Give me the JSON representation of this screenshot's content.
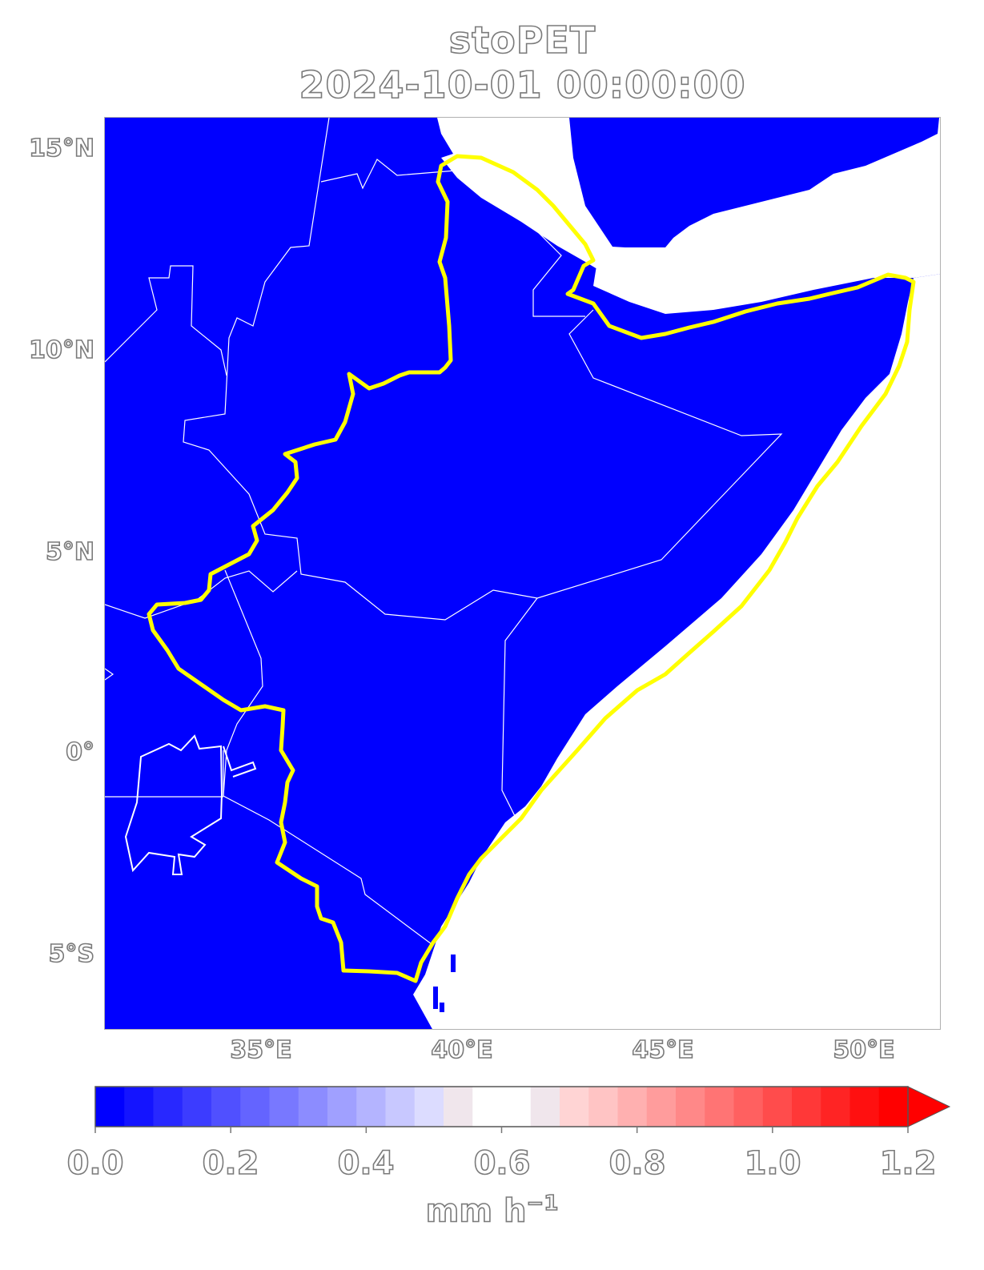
{
  "title": {
    "variable": "stoPET",
    "datetime": "2024-10-01 00:00:00"
  },
  "map": {
    "fill_color": "#0000ff",
    "boundary_color": "#ffffff",
    "highlight_boundary_color": "#ffff00",
    "lat_labels": [
      "15°N",
      "10°N",
      "5°N",
      "0°",
      "5°S"
    ],
    "lon_labels": [
      "35°E",
      "40°E",
      "45°E",
      "50°E"
    ]
  },
  "colorbar": {
    "tick_labels": [
      "0.0",
      "0.2",
      "0.4",
      "0.6",
      "0.8",
      "1.0",
      "1.2"
    ],
    "units_base": "mm h",
    "units_exp": "−1",
    "colors": [
      "#0000ff",
      "#1414ff",
      "#2828ff",
      "#3c3cff",
      "#5050ff",
      "#6464ff",
      "#7878ff",
      "#8c8cff",
      "#a0a0ff",
      "#b4b4ff",
      "#c8c8ff",
      "#dcdcff",
      "#f0e6ec",
      "#ffffff",
      "#ffffff",
      "#f0e6ec",
      "#ffd4d4",
      "#ffc4c4",
      "#ffb0b0",
      "#ff9c9c",
      "#ff8888",
      "#ff7474",
      "#ff6060",
      "#ff4c4c",
      "#ff3838",
      "#ff2424",
      "#ff1010",
      "#ff0000"
    ]
  }
}
